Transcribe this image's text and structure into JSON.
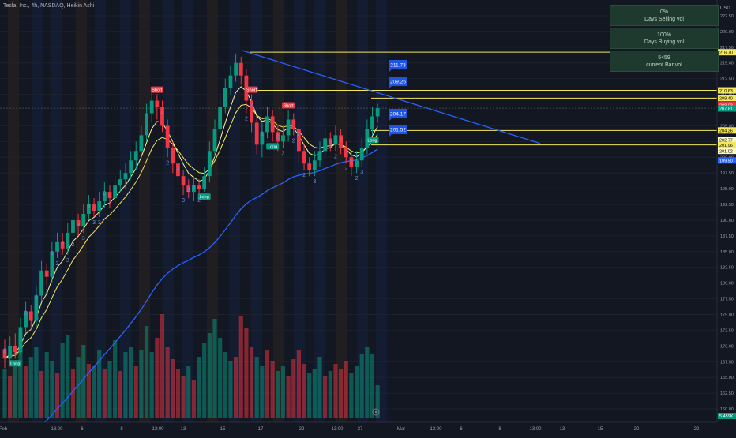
{
  "header": {
    "symbol_info": "Tesla, Inc., 4h, NASDAQ, Heikin Ashi"
  },
  "currency": "USD",
  "stats_panel": [
    {
      "value": "0%",
      "label": "Days Selling vol"
    },
    {
      "value": "100%",
      "label": "Days Buying vol"
    },
    {
      "value": "5459",
      "label": "current Bar vol"
    }
  ],
  "price_axis": {
    "ticks": [
      "222.50",
      "220.00",
      "217.50",
      "215.00",
      "212.50",
      "210.00",
      "207.50",
      "205.00",
      "202.50",
      "200.00",
      "197.50",
      "195.00",
      "192.50",
      "190.00",
      "187.50",
      "185.00",
      "182.50",
      "180.00",
      "177.50",
      "175.00",
      "172.50",
      "170.00",
      "167.50",
      "165.00",
      "162.50",
      "160.00"
    ],
    "labels": [
      {
        "text": "216.70",
        "color": "#f2e75e",
        "text_color": "#000000"
      },
      {
        "text": "210.63",
        "color": "#f2e75e",
        "text_color": "#000000"
      },
      {
        "text": "209.40",
        "color": "#f2e75e",
        "text_color": "#000000"
      },
      {
        "text": "208.03",
        "color": "#f23645",
        "text_color": "#ffffff"
      },
      {
        "text": "207.81",
        "color": "#089981",
        "text_color": "#ffffff"
      },
      {
        "text": "204.26",
        "color": "#f2e75e",
        "text_color": "#000000"
      },
      {
        "text": "202.77",
        "color": "#fff9c4",
        "text_color": "#000000"
      },
      {
        "text": "201.96",
        "color": "#f2e75e",
        "text_color": "#000000"
      },
      {
        "text": "201.02",
        "color": "#fff9c4",
        "text_color": "#000000"
      },
      {
        "text": "199.50",
        "color": "#2962ff",
        "text_color": "#ffffff"
      },
      {
        "text": "5.459K",
        "color": "#089981",
        "text_color": "#ffffff"
      }
    ]
  },
  "time_axis": [
    "Feb",
    "13:00",
    "6",
    "8",
    "13:00",
    "13",
    "15",
    "17",
    "22",
    "13:00",
    "27",
    "Mar",
    "13:00",
    "6",
    "8",
    "13:00",
    "13",
    "15",
    "20",
    "22"
  ],
  "callouts": [
    "211.73",
    "209.26",
    "204.17",
    "201.52"
  ],
  "trade_labels": [
    {
      "text": "Short",
      "kind": "short"
    },
    {
      "text": "Short",
      "kind": "short"
    },
    {
      "text": "Short",
      "kind": "short"
    },
    {
      "text": "Long",
      "kind": "long"
    },
    {
      "text": "Long",
      "kind": "long"
    },
    {
      "text": "Long",
      "kind": "long"
    },
    {
      "text": "Long",
      "kind": "long"
    }
  ],
  "counter_labels": [
    "2",
    "2",
    "2",
    "3",
    "3",
    "2",
    "2",
    "3",
    "3",
    "2",
    "2",
    "2",
    "3",
    "2",
    "2",
    "2",
    "2",
    "2",
    "3",
    "2",
    "2",
    "2",
    "3",
    "2",
    "2",
    "2",
    "2",
    "2",
    "2",
    "3",
    "2",
    "2",
    "2",
    "2",
    "2",
    "3",
    "3",
    "3",
    "3",
    "2"
  ],
  "colors": {
    "up": "#089981",
    "down": "#f23645",
    "ema_fast": "#fff59d",
    "ema_slow": "#f2e75e",
    "ma_long": "#2962ff",
    "trendline": "#2962ff",
    "level": "#f2e75e",
    "background": "#131722"
  },
  "chart_data": {
    "type": "candlestick",
    "title": "Tesla, Inc., 4h, NASDAQ, Heikin Ashi",
    "ylim": [
      158.5,
      224
    ],
    "y_ticks": [
      160,
      162.5,
      165,
      167.5,
      170,
      172.5,
      175,
      177.5,
      180,
      182.5,
      185,
      187.5,
      190,
      192.5,
      195,
      197.5,
      200,
      202.5,
      205,
      207.5,
      210,
      212.5,
      215,
      217.5,
      220,
      222.5
    ],
    "candles": [
      {
        "o": 169.5,
        "c": 168.0,
        "h": 171.0,
        "l": 166.5
      },
      {
        "o": 168.0,
        "c": 170.0,
        "h": 171.5,
        "l": 167.0
      },
      {
        "o": 170.0,
        "c": 169.0,
        "h": 172.0,
        "l": 168.0
      },
      {
        "o": 169.0,
        "c": 173.0,
        "h": 174.5,
        "l": 168.5
      },
      {
        "o": 173.0,
        "c": 175.5,
        "h": 177.0,
        "l": 172.0
      },
      {
        "o": 175.5,
        "c": 174.0,
        "h": 176.5,
        "l": 172.5
      },
      {
        "o": 174.0,
        "c": 178.0,
        "h": 179.5,
        "l": 173.0
      },
      {
        "o": 178.0,
        "c": 182.0,
        "h": 183.5,
        "l": 177.0
      },
      {
        "o": 182.0,
        "c": 181.0,
        "h": 183.0,
        "l": 179.5
      },
      {
        "o": 181.0,
        "c": 185.0,
        "h": 186.5,
        "l": 180.0
      },
      {
        "o": 185.0,
        "c": 186.5,
        "h": 188.0,
        "l": 184.0
      },
      {
        "o": 186.5,
        "c": 185.5,
        "h": 188.0,
        "l": 184.5
      },
      {
        "o": 185.5,
        "c": 188.0,
        "h": 189.5,
        "l": 184.5
      },
      {
        "o": 188.0,
        "c": 190.0,
        "h": 191.5,
        "l": 187.0
      },
      {
        "o": 190.0,
        "c": 189.0,
        "h": 191.0,
        "l": 187.5
      },
      {
        "o": 189.0,
        "c": 191.0,
        "h": 192.5,
        "l": 188.0
      },
      {
        "o": 191.0,
        "c": 192.5,
        "h": 194.0,
        "l": 190.0
      },
      {
        "o": 192.5,
        "c": 191.5,
        "h": 193.5,
        "l": 190.5
      },
      {
        "o": 191.5,
        "c": 193.0,
        "h": 194.5,
        "l": 190.5
      },
      {
        "o": 193.0,
        "c": 194.5,
        "h": 196.0,
        "l": 192.0
      },
      {
        "o": 194.5,
        "c": 193.5,
        "h": 195.5,
        "l": 192.0
      },
      {
        "o": 193.5,
        "c": 195.5,
        "h": 197.0,
        "l": 192.5
      },
      {
        "o": 195.5,
        "c": 196.5,
        "h": 198.0,
        "l": 194.5
      },
      {
        "o": 196.5,
        "c": 197.5,
        "h": 199.0,
        "l": 195.0
      },
      {
        "o": 197.5,
        "c": 199.5,
        "h": 201.0,
        "l": 196.5
      },
      {
        "o": 199.5,
        "c": 201.0,
        "h": 202.5,
        "l": 198.0
      },
      {
        "o": 201.0,
        "c": 203.5,
        "h": 205.0,
        "l": 200.0
      },
      {
        "o": 203.5,
        "c": 207.0,
        "h": 208.5,
        "l": 202.5
      },
      {
        "o": 207.0,
        "c": 209.0,
        "h": 210.5,
        "l": 205.5
      },
      {
        "o": 209.0,
        "c": 208.0,
        "h": 210.0,
        "l": 206.0
      },
      {
        "o": 208.0,
        "c": 205.0,
        "h": 209.0,
        "l": 204.0
      },
      {
        "o": 205.0,
        "c": 201.5,
        "h": 206.0,
        "l": 200.0
      },
      {
        "o": 201.5,
        "c": 199.0,
        "h": 202.5,
        "l": 197.5
      },
      {
        "o": 199.0,
        "c": 197.0,
        "h": 200.0,
        "l": 195.5
      },
      {
        "o": 197.0,
        "c": 195.5,
        "h": 198.0,
        "l": 194.0
      },
      {
        "o": 195.5,
        "c": 194.5,
        "h": 196.5,
        "l": 193.5
      },
      {
        "o": 194.5,
        "c": 195.5,
        "h": 197.0,
        "l": 193.0
      },
      {
        "o": 195.5,
        "c": 195.0,
        "h": 196.5,
        "l": 194.0
      },
      {
        "o": 195.0,
        "c": 197.0,
        "h": 198.5,
        "l": 194.5
      },
      {
        "o": 197.0,
        "c": 201.0,
        "h": 202.5,
        "l": 196.0
      },
      {
        "o": 201.0,
        "c": 204.5,
        "h": 206.0,
        "l": 200.0
      },
      {
        "o": 204.5,
        "c": 208.0,
        "h": 209.5,
        "l": 203.5
      },
      {
        "o": 208.0,
        "c": 211.0,
        "h": 212.5,
        "l": 207.0
      },
      {
        "o": 211.0,
        "c": 213.0,
        "h": 214.5,
        "l": 210.0
      },
      {
        "o": 213.0,
        "c": 215.0,
        "h": 216.5,
        "l": 212.0
      },
      {
        "o": 215.0,
        "c": 213.0,
        "h": 216.0,
        "l": 211.5
      },
      {
        "o": 213.0,
        "c": 209.0,
        "h": 214.0,
        "l": 207.0
      },
      {
        "o": 209.0,
        "c": 205.5,
        "h": 210.0,
        "l": 204.0
      },
      {
        "o": 205.5,
        "c": 202.0,
        "h": 206.5,
        "l": 200.5
      },
      {
        "o": 202.0,
        "c": 204.0,
        "h": 205.5,
        "l": 200.0
      },
      {
        "o": 204.0,
        "c": 206.5,
        "h": 208.0,
        "l": 203.0
      },
      {
        "o": 206.5,
        "c": 204.0,
        "h": 207.5,
        "l": 202.5
      },
      {
        "o": 204.0,
        "c": 202.5,
        "h": 205.0,
        "l": 201.0
      },
      {
        "o": 202.5,
        "c": 203.5,
        "h": 205.0,
        "l": 201.5
      },
      {
        "o": 203.5,
        "c": 206.0,
        "h": 207.5,
        "l": 202.5
      },
      {
        "o": 206.0,
        "c": 204.5,
        "h": 207.0,
        "l": 203.5
      },
      {
        "o": 204.5,
        "c": 201.0,
        "h": 205.5,
        "l": 199.0
      },
      {
        "o": 201.0,
        "c": 199.0,
        "h": 202.0,
        "l": 198.0
      },
      {
        "o": 199.0,
        "c": 198.0,
        "h": 200.0,
        "l": 197.0
      },
      {
        "o": 198.0,
        "c": 199.5,
        "h": 201.0,
        "l": 197.0
      },
      {
        "o": 199.5,
        "c": 201.0,
        "h": 202.5,
        "l": 198.5
      },
      {
        "o": 201.0,
        "c": 203.0,
        "h": 204.5,
        "l": 200.0
      },
      {
        "o": 203.0,
        "c": 202.0,
        "h": 204.0,
        "l": 201.0
      },
      {
        "o": 202.0,
        "c": 203.5,
        "h": 205.0,
        "l": 201.0
      },
      {
        "o": 203.5,
        "c": 201.5,
        "h": 204.5,
        "l": 200.5
      },
      {
        "o": 201.5,
        "c": 200.0,
        "h": 202.5,
        "l": 199.0
      },
      {
        "o": 200.0,
        "c": 198.5,
        "h": 201.0,
        "l": 197.0
      },
      {
        "o": 198.5,
        "c": 199.5,
        "h": 201.0,
        "l": 197.5
      },
      {
        "o": 199.5,
        "c": 201.5,
        "h": 203.0,
        "l": 198.5
      },
      {
        "o": 201.5,
        "c": 204.5,
        "h": 206.0,
        "l": 200.5
      },
      {
        "o": 204.5,
        "c": 206.5,
        "h": 208.0,
        "l": 203.5
      },
      {
        "o": 206.5,
        "c": 207.8,
        "h": 208.5,
        "l": 205.5
      }
    ],
    "volumes": [
      {
        "v": 2.1,
        "up": true
      },
      {
        "v": 1.8,
        "up": false
      },
      {
        "v": 2.4,
        "up": true
      },
      {
        "v": 3.6,
        "up": true
      },
      {
        "v": 2.2,
        "up": false
      },
      {
        "v": 2.6,
        "up": true
      },
      {
        "v": 3.0,
        "up": true
      },
      {
        "v": 2.0,
        "up": false
      },
      {
        "v": 2.8,
        "up": true
      },
      {
        "v": 2.4,
        "up": true
      },
      {
        "v": 1.9,
        "up": false
      },
      {
        "v": 3.2,
        "up": true
      },
      {
        "v": 3.5,
        "up": true
      },
      {
        "v": 2.1,
        "up": false
      },
      {
        "v": 2.6,
        "up": true
      },
      {
        "v": 3.1,
        "up": true
      },
      {
        "v": 2.3,
        "up": false
      },
      {
        "v": 2.2,
        "up": true
      },
      {
        "v": 2.9,
        "up": true
      },
      {
        "v": 2.1,
        "up": false
      },
      {
        "v": 2.4,
        "up": true
      },
      {
        "v": 3.3,
        "up": true
      },
      {
        "v": 2.0,
        "up": false
      },
      {
        "v": 2.8,
        "up": true
      },
      {
        "v": 3.0,
        "up": true
      },
      {
        "v": 2.2,
        "up": false
      },
      {
        "v": 2.9,
        "up": true
      },
      {
        "v": 3.9,
        "up": true
      },
      {
        "v": 2.8,
        "up": true
      },
      {
        "v": 3.4,
        "up": false
      },
      {
        "v": 4.4,
        "up": false
      },
      {
        "v": 3.0,
        "up": false
      },
      {
        "v": 2.5,
        "up": false
      },
      {
        "v": 2.1,
        "up": false
      },
      {
        "v": 1.8,
        "up": false
      },
      {
        "v": 2.2,
        "up": true
      },
      {
        "v": 1.6,
        "up": false
      },
      {
        "v": 2.6,
        "up": true
      },
      {
        "v": 3.2,
        "up": true
      },
      {
        "v": 3.6,
        "up": true
      },
      {
        "v": 4.2,
        "up": true
      },
      {
        "v": 3.4,
        "up": true
      },
      {
        "v": 2.8,
        "up": true
      },
      {
        "v": 2.4,
        "up": true
      },
      {
        "v": 2.6,
        "up": false
      },
      {
        "v": 4.3,
        "up": false
      },
      {
        "v": 3.8,
        "up": false
      },
      {
        "v": 3.0,
        "up": false
      },
      {
        "v": 2.6,
        "up": true
      },
      {
        "v": 2.2,
        "up": true
      },
      {
        "v": 2.9,
        "up": false
      },
      {
        "v": 2.4,
        "up": false
      },
      {
        "v": 2.0,
        "up": true
      },
      {
        "v": 2.2,
        "up": true
      },
      {
        "v": 1.8,
        "up": false
      },
      {
        "v": 2.5,
        "up": false
      },
      {
        "v": 2.9,
        "up": false
      },
      {
        "v": 2.3,
        "up": false
      },
      {
        "v": 1.9,
        "up": true
      },
      {
        "v": 2.1,
        "up": true
      },
      {
        "v": 2.6,
        "up": true
      },
      {
        "v": 1.8,
        "up": false
      },
      {
        "v": 2.0,
        "up": true
      },
      {
        "v": 2.3,
        "up": false
      },
      {
        "v": 2.1,
        "up": false
      },
      {
        "v": 2.4,
        "up": false
      },
      {
        "v": 1.9,
        "up": true
      },
      {
        "v": 2.2,
        "up": true
      },
      {
        "v": 2.7,
        "up": true
      },
      {
        "v": 3.0,
        "up": true
      },
      {
        "v": 2.7,
        "up": true
      },
      {
        "v": 1.4,
        "up": true
      }
    ],
    "levels": [
      216.7,
      210.63,
      209.4,
      204.26,
      201.96
    ]
  }
}
